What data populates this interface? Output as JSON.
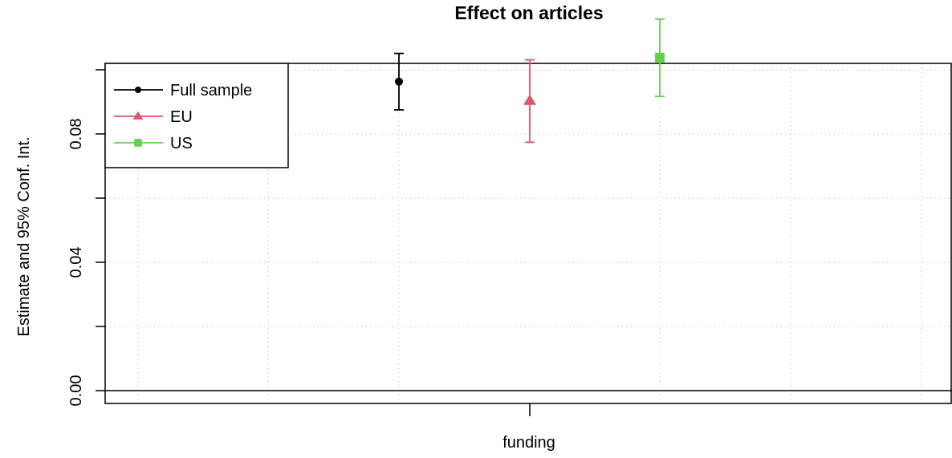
{
  "chart_data": {
    "type": "scatter",
    "title": "Effect on articles",
    "xlabel": "funding",
    "ylabel": "Estimate and 95% Conf. Int.",
    "categories": [
      "funding"
    ],
    "ylim": [
      -0.004,
      0.102
    ],
    "yticks": [
      "0.00",
      "0.04",
      "0.08"
    ],
    "ytick_values": [
      0.0,
      0.04,
      0.08
    ],
    "minor_ytick_values": [
      0.02,
      0.06,
      0.1
    ],
    "grid": true,
    "zero_line": true,
    "legend_position": "top-left",
    "series": [
      {
        "name": "Full sample",
        "estimate": 0.0963,
        "ci_low": 0.0875,
        "ci_high": 0.1051,
        "color": "#000000",
        "marker": "circle"
      },
      {
        "name": "EU",
        "estimate": 0.0903,
        "ci_low": 0.0774,
        "ci_high": 0.1031,
        "color": "#DF536B",
        "marker": "triangle"
      },
      {
        "name": "US",
        "estimate": 0.1038,
        "ci_low": 0.0917,
        "ci_high": 0.1158,
        "color": "#61D04F",
        "marker": "square"
      }
    ]
  }
}
